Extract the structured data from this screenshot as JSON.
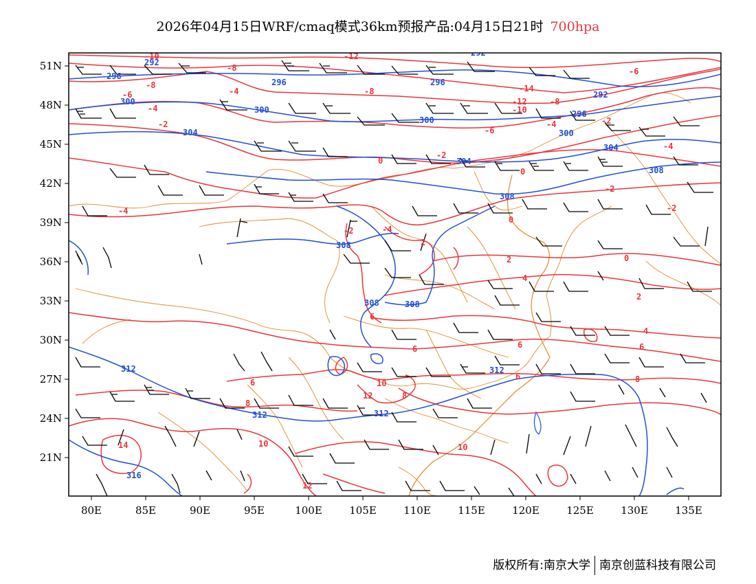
{
  "title": {
    "main": "2026年04月15日WRF/cmaq模式36km预报产品:04月15日21时",
    "level": "700hpa"
  },
  "axes": {
    "lat_labels": [
      "51N",
      "48N",
      "45N",
      "42N",
      "39N",
      "36N",
      "33N",
      "30N",
      "27N",
      "24N",
      "21N"
    ],
    "lon_labels": [
      "80E",
      "85E",
      "90E",
      "95E",
      "100E",
      "105E",
      "110E",
      "115E",
      "120E",
      "125E",
      "130E",
      "135E"
    ]
  },
  "colors": {
    "temperature": "#e8363b",
    "height": "#1f4fd6",
    "border": "#e08a2c",
    "barb": "#000000"
  },
  "contours": {
    "temperature_labels": [
      "-10",
      "-12",
      "-8",
      "-6",
      "-4",
      "-2",
      "-14",
      "0",
      "2",
      "4",
      "6",
      "8",
      "10",
      "12",
      "14"
    ],
    "height_labels": [
      "292",
      "296",
      "300",
      "304",
      "308",
      "312",
      "316"
    ]
  },
  "footer": {
    "copyright": "版权所有:南京大学",
    "company": "南京创蓝科技有限公司"
  }
}
